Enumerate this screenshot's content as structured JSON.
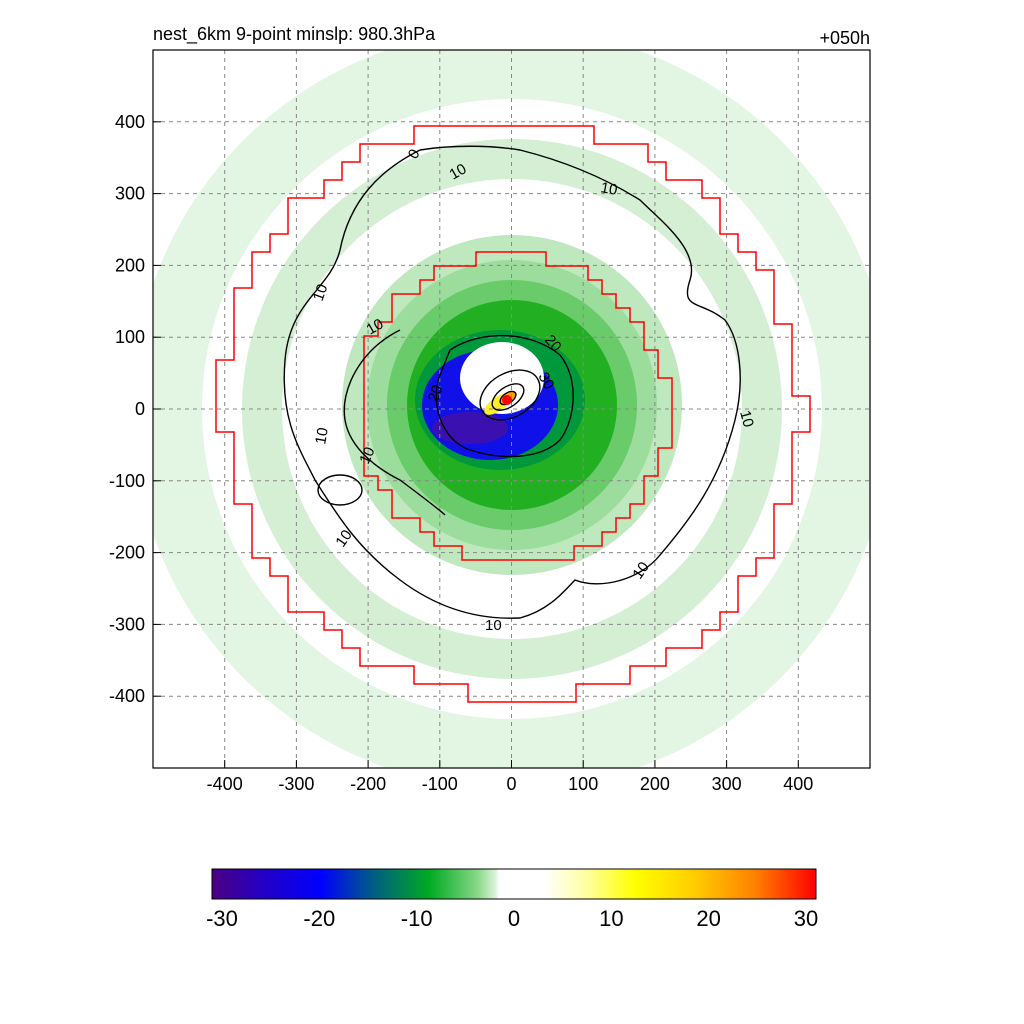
{
  "chart_data": {
    "type": "heatmap",
    "title_left": "nest_6km  9-point minslp: 980.3hPa",
    "title_right": "+050h",
    "xlim": [
      -500,
      500
    ],
    "ylim": [
      -500,
      500
    ],
    "x_ticks": [
      -400,
      -300,
      -200,
      -100,
      0,
      100,
      200,
      300,
      400
    ],
    "y_ticks": [
      400,
      300,
      200,
      100,
      0,
      -100,
      -200,
      -300,
      -400
    ],
    "grid": true,
    "colorbar": {
      "range": [
        -30,
        30
      ],
      "tick_labels": [
        "-30",
        "-20",
        "-10",
        "0",
        "10",
        "20",
        "30"
      ]
    },
    "contour_labels": [
      "10",
      "10",
      "10",
      "10",
      "10",
      "10",
      "10",
      "10",
      "10",
      "10",
      "20",
      "20",
      "30",
      "0"
    ],
    "colors": {
      "boundary": "#ff0000",
      "contour": "#000000",
      "grid": "#888888",
      "center_marker": "#ff0000"
    }
  }
}
